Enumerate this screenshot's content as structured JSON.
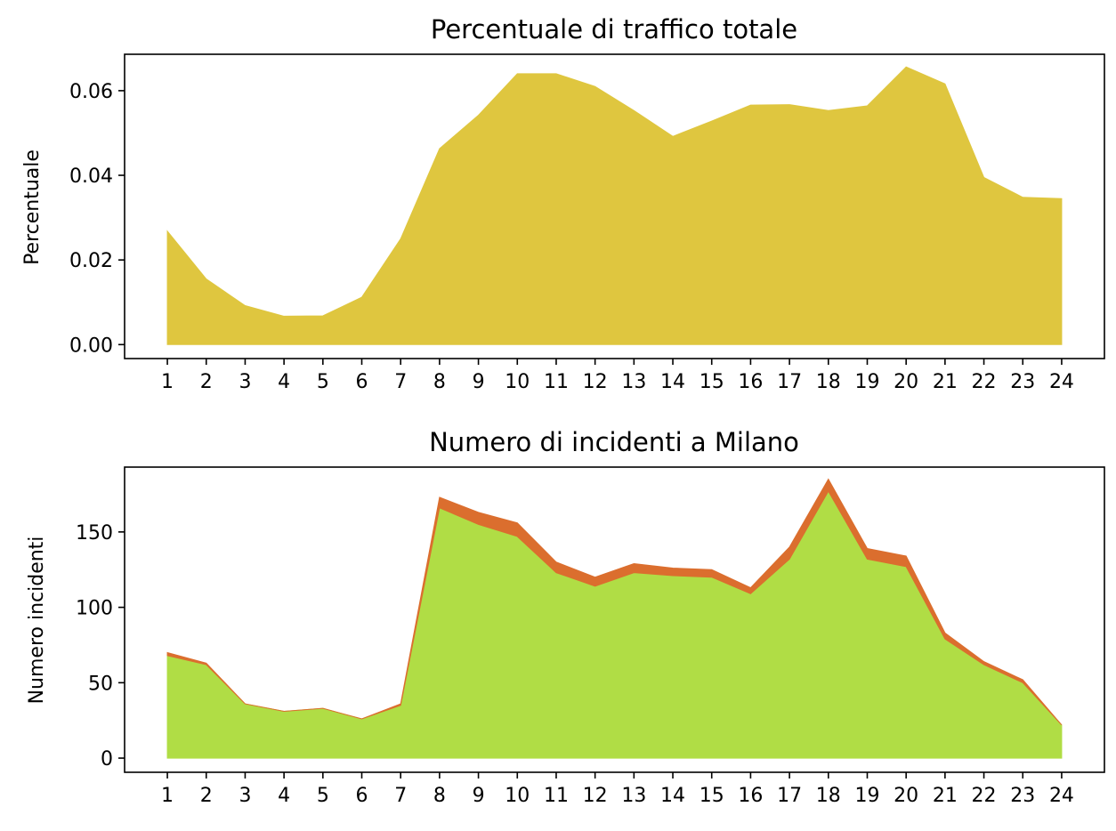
{
  "chart_data": [
    {
      "type": "area",
      "title": "Percentuale di traffico totale",
      "xlabel": "",
      "ylabel": "Percentuale",
      "x": [
        1,
        2,
        3,
        4,
        5,
        6,
        7,
        8,
        9,
        10,
        11,
        12,
        13,
        14,
        15,
        16,
        17,
        18,
        19,
        20,
        21,
        22,
        23,
        24
      ],
      "xlim": [
        -0.1,
        25.1
      ],
      "ylim": [
        -0.0033,
        0.0686
      ],
      "yticks": [
        0.0,
        0.02,
        0.04,
        0.06
      ],
      "ytick_labels": [
        "0.00",
        "0.02",
        "0.04",
        "0.06"
      ],
      "series": [
        {
          "color": "#dfc63f",
          "values": [
            0.0268,
            0.0155,
            0.0092,
            0.0067,
            0.0068,
            0.0112,
            0.025,
            0.0463,
            0.0542,
            0.064,
            0.064,
            0.061,
            0.0553,
            0.0492,
            0.0528,
            0.0566,
            0.0567,
            0.0553,
            0.0564,
            0.0656,
            0.0616,
            0.0395,
            0.0348,
            0.0345
          ]
        }
      ]
    },
    {
      "type": "area",
      "title": "Numero di incidenti a Milano",
      "xlabel": "",
      "ylabel": "Numero incidenti",
      "x": [
        1,
        2,
        3,
        4,
        5,
        6,
        7,
        8,
        9,
        10,
        11,
        12,
        13,
        14,
        15,
        16,
        17,
        18,
        19,
        20,
        21,
        22,
        23,
        24
      ],
      "xlim": [
        -0.1,
        25.1
      ],
      "ylim": [
        -9.4,
        193.0
      ],
      "yticks": [
        0,
        50,
        100,
        150
      ],
      "ytick_labels": [
        "0",
        "50",
        "100",
        "150"
      ],
      "stacked": true,
      "series": [
        {
          "color": "#b0dd45",
          "values": [
            68,
            62,
            36,
            31,
            33,
            26,
            35,
            166,
            155,
            147,
            123,
            114,
            123,
            121,
            120,
            109,
            132,
            177,
            132,
            127,
            79,
            62,
            50,
            22
          ]
        },
        {
          "color": "#db6e2e",
          "values": [
            2,
            1,
            0,
            0,
            0,
            0,
            1,
            7,
            8,
            9,
            7,
            6,
            6,
            5,
            5,
            4,
            8,
            8,
            7,
            7,
            4,
            2,
            2,
            0
          ]
        }
      ]
    }
  ]
}
